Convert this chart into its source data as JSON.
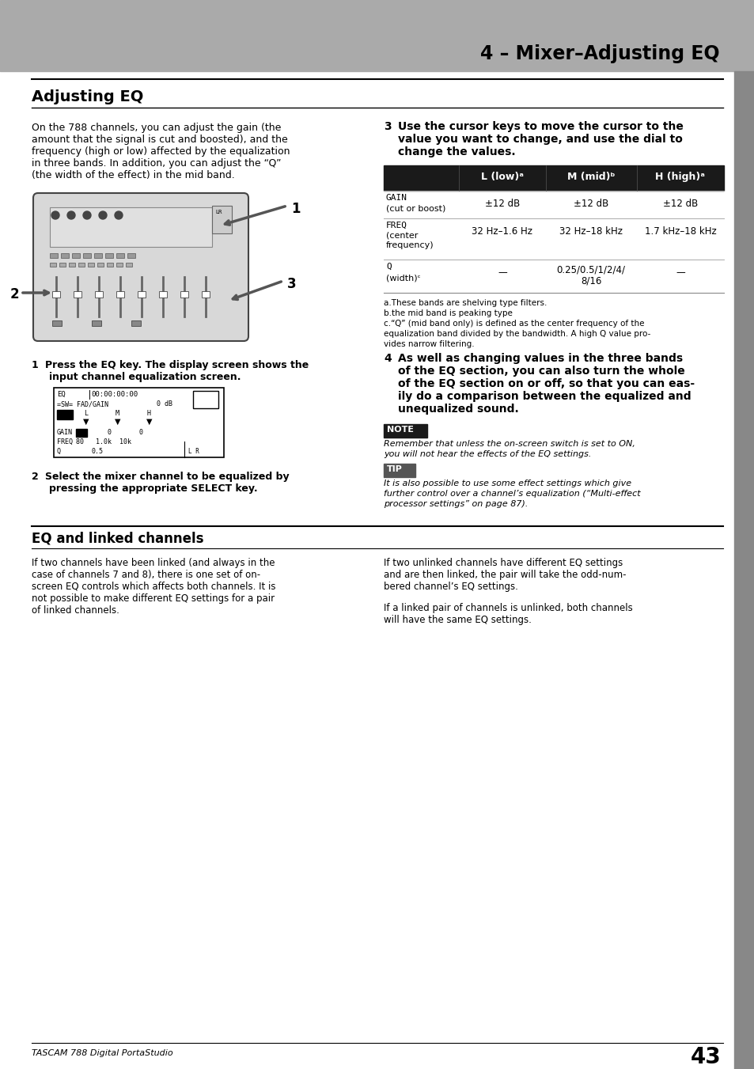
{
  "page_bg": "#ffffff",
  "header_bg": "#aaaaaa",
  "header_text": "4 – Mixer–Adjusting EQ",
  "header_text_color": "#000000",
  "section1_title": "Adjusting EQ",
  "section1_body_left": "On the 788 channels, you can adjust the gain (the\namount that the signal is cut and boosted), and the\nfrequency (high or low) affected by the equalization\nin three bands. In addition, you can adjust the “Q”\n(the width of the effect) in the mid band.",
  "step1_bold_1": "Press the EQ key. The display screen shows the",
  "step1_bold_2": "input channel equalization screen.",
  "step2_bold_1": "Select the mixer channel to be equalized by",
  "step2_bold_2": "pressing the appropriate SELECT key.",
  "step3_bold": "Use the cursor keys to move the cursor to the\nvalue you want to change, and use the dial to\nchange the values.",
  "step4_bold": "As well as changing values in the three bands\nof the EQ section, you can also turn the whole\nof the EQ section on or off, so that you can eas-\nily do a comparison between the equalized and\nunequalized sound.",
  "note_text_1": "Remember that unless the on-screen switch is set to ON,",
  "note_text_2": "you will not hear the effects of the EQ settings.",
  "tip_text": "It is also possible to use some effect settings which give\nfurther control over a channel’s equalization (“Multi-effect\nprocessor settings” on page 87).",
  "table_header_bg": "#1a1a1a",
  "table_header_text_color": "#ffffff",
  "table_col_headers": [
    "L (low)ᵃ",
    "M (mid)ᵇ",
    "H (high)ᵃ"
  ],
  "table_row1_label": "GAIN",
  "table_row1_sub": "(cut or boost)",
  "table_row1_vals": [
    "±12 dB",
    "±12 dB",
    "±12 dB"
  ],
  "table_row2_label": "FREQ",
  "table_row2_sub": "(center\nfrequency)",
  "table_row2_vals": [
    "32 Hz–1.6 Hz",
    "32 Hz–18 kHz",
    "1.7 kHz–18 kHz"
  ],
  "table_row3_label": "Q",
  "table_row3_sub": "(width)ᶜ",
  "table_row3_vals": [
    "—",
    "0.25/0.5/1/2/4/\n8/16",
    "—"
  ],
  "footnote_a": "a.These bands are shelving type filters.",
  "footnote_b": "b.the mid band is peaking type",
  "footnote_c_1": "c.“Q” (mid band only) is defined as the center frequency of the",
  "footnote_c_2": "equalization band divided by the bandwidth. A high Q value pro-",
  "footnote_c_3": "vides narrow filtering.",
  "section2_title": "EQ and linked channels",
  "section2_left_1": "If two channels have been linked (and always in the",
  "section2_left_2": "case of channels 7 and 8), there is one set of on-",
  "section2_left_3": "screen EQ controls which affects both channels. It is",
  "section2_left_4": "not possible to make different EQ settings for a pair",
  "section2_left_5": "of linked channels.",
  "section2_right_p1_1": "If two unlinked channels have different EQ settings",
  "section2_right_p1_2": "and are then linked, the pair will take the odd-num-",
  "section2_right_p1_3": "bered channel’s EQ settings.",
  "section2_right_p2_1": "If a linked pair of channels is unlinked, both channels",
  "section2_right_p2_2": "will have the same EQ settings.",
  "footer_text": "TASCAM 788 Digital PortaStudio",
  "footer_page": "43",
  "sidebar_color": "#888888"
}
